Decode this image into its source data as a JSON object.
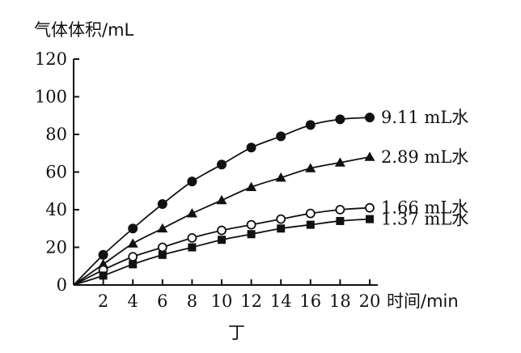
{
  "chart_data": {
    "type": "line",
    "ylabel": "气体体积/mL",
    "xlabel": "时间/min",
    "caption": "丁",
    "xlim": [
      0,
      20
    ],
    "ylim": [
      0,
      120
    ],
    "x_ticks": [
      2,
      4,
      6,
      8,
      10,
      12,
      14,
      16,
      18,
      20
    ],
    "y_ticks": [
      0,
      20,
      40,
      60,
      80,
      100,
      120
    ],
    "x": [
      0,
      2,
      4,
      6,
      8,
      10,
      12,
      14,
      16,
      18,
      20
    ],
    "grid": false,
    "legend": "none",
    "series": [
      {
        "name": "9.11 mL水",
        "marker": "filled-circle",
        "values": [
          0,
          16,
          30,
          43,
          55,
          64,
          73,
          79,
          85,
          88,
          89
        ]
      },
      {
        "name": "2.89 mL水",
        "marker": "filled-triangle",
        "values": [
          0,
          11,
          22,
          30,
          38,
          45,
          52,
          57,
          62,
          65,
          68
        ]
      },
      {
        "name": "1.66 mL水",
        "marker": "open-circle",
        "values": [
          0,
          8,
          15,
          20,
          25,
          29,
          32,
          35,
          38,
          40,
          41
        ]
      },
      {
        "name": "1.37 mL水",
        "marker": "filled-square",
        "values": [
          0,
          5,
          11,
          16,
          20,
          24,
          27,
          30,
          32,
          34,
          35
        ]
      }
    ]
  }
}
